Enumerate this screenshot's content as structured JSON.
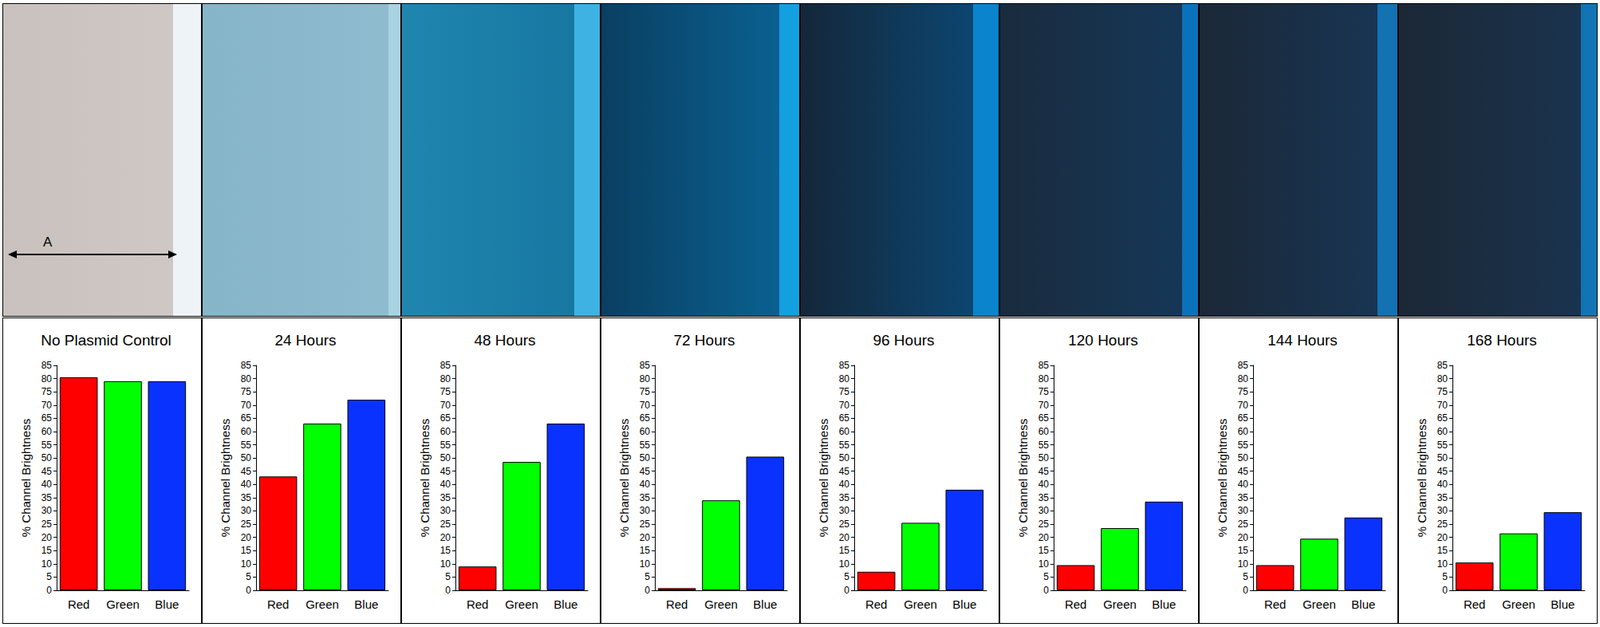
{
  "chart_data": [
    {
      "type": "bar",
      "title": "No Plasmid Control",
      "y_label": "% Channel Brightness",
      "annotations": [
        "A"
      ],
      "categories": [
        "Red",
        "Green",
        "Blue"
      ],
      "values": [
        80.5,
        79,
        79
      ],
      "colors": [
        "#ff0000",
        "#00ff00",
        "#0a32ff"
      ],
      "ylim": [
        0,
        85
      ],
      "yticks": [
        0,
        5,
        10,
        15,
        20,
        25,
        30,
        35,
        40,
        45,
        50,
        55,
        60,
        65,
        70,
        75,
        80,
        85
      ],
      "grid": false,
      "data_labels": false
    },
    {
      "type": "bar",
      "title": "24 Hours",
      "y_label": "% Channel Brightness",
      "categories": [
        "Red",
        "Green",
        "Blue"
      ],
      "values": [
        43,
        63,
        72
      ],
      "colors": [
        "#ff0000",
        "#00ff00",
        "#0a32ff"
      ],
      "ylim": [
        0,
        85
      ],
      "yticks": [
        0,
        5,
        10,
        15,
        20,
        25,
        30,
        35,
        40,
        45,
        50,
        55,
        60,
        65,
        70,
        75,
        80,
        85
      ],
      "grid": false,
      "data_labels": false
    },
    {
      "type": "bar",
      "title": "48 Hours",
      "y_label": "% Channel Brightness",
      "categories": [
        "Red",
        "Green",
        "Blue"
      ],
      "values": [
        9,
        48.5,
        63
      ],
      "colors": [
        "#ff0000",
        "#00ff00",
        "#0a32ff"
      ],
      "ylim": [
        0,
        85
      ],
      "yticks": [
        0,
        5,
        10,
        15,
        20,
        25,
        30,
        35,
        40,
        45,
        50,
        55,
        60,
        65,
        70,
        75,
        80,
        85
      ],
      "grid": false,
      "data_labels": false
    },
    {
      "type": "bar",
      "title": "72 Hours",
      "y_label": "% Channel Brightness",
      "categories": [
        "Red",
        "Green",
        "Blue"
      ],
      "values": [
        0.8,
        34,
        50.5
      ],
      "colors": [
        "#ff0000",
        "#00ff00",
        "#0a32ff"
      ],
      "ylim": [
        0,
        85
      ],
      "yticks": [
        0,
        5,
        10,
        15,
        20,
        25,
        30,
        35,
        40,
        45,
        50,
        55,
        60,
        65,
        70,
        75,
        80,
        85
      ],
      "grid": false,
      "data_labels": false
    },
    {
      "type": "bar",
      "title": "96 Hours",
      "y_label": "% Channel Brightness",
      "categories": [
        "Red",
        "Green",
        "Blue"
      ],
      "values": [
        7,
        25.5,
        38
      ],
      "colors": [
        "#ff0000",
        "#00ff00",
        "#0a32ff"
      ],
      "ylim": [
        0,
        85
      ],
      "yticks": [
        0,
        5,
        10,
        15,
        20,
        25,
        30,
        35,
        40,
        45,
        50,
        55,
        60,
        65,
        70,
        75,
        80,
        85
      ],
      "grid": false,
      "data_labels": false
    },
    {
      "type": "bar",
      "title": "120 Hours",
      "y_label": "% Channel Brightness",
      "categories": [
        "Red",
        "Green",
        "Blue"
      ],
      "values": [
        9.5,
        23.5,
        33.5
      ],
      "colors": [
        "#ff0000",
        "#00ff00",
        "#0a32ff"
      ],
      "ylim": [
        0,
        85
      ],
      "yticks": [
        0,
        5,
        10,
        15,
        20,
        25,
        30,
        35,
        40,
        45,
        50,
        55,
        60,
        65,
        70,
        75,
        80,
        85
      ],
      "grid": false,
      "data_labels": false
    },
    {
      "type": "bar",
      "title": "144 Hours",
      "y_label": "% Channel Brightness",
      "categories": [
        "Red",
        "Green",
        "Blue"
      ],
      "values": [
        9.5,
        19.5,
        27.5
      ],
      "colors": [
        "#ff0000",
        "#00ff00",
        "#0a32ff"
      ],
      "ylim": [
        0,
        85
      ],
      "yticks": [
        0,
        5,
        10,
        15,
        20,
        25,
        30,
        35,
        40,
        45,
        50,
        55,
        60,
        65,
        70,
        75,
        80,
        85
      ],
      "grid": false,
      "data_labels": false
    },
    {
      "type": "bar",
      "title": "168 Hours",
      "y_label": "% Channel Brightness",
      "categories": [
        "Red",
        "Green",
        "Blue"
      ],
      "values": [
        10.5,
        21.5,
        29.5
      ],
      "colors": [
        "#ff0000",
        "#00ff00",
        "#0a32ff"
      ],
      "ylim": [
        0,
        85
      ],
      "yticks": [
        0,
        5,
        10,
        15,
        20,
        25,
        30,
        35,
        40,
        45,
        50,
        55,
        60,
        65,
        70,
        75,
        80,
        85
      ],
      "grid": false,
      "data_labels": false
    }
  ]
}
